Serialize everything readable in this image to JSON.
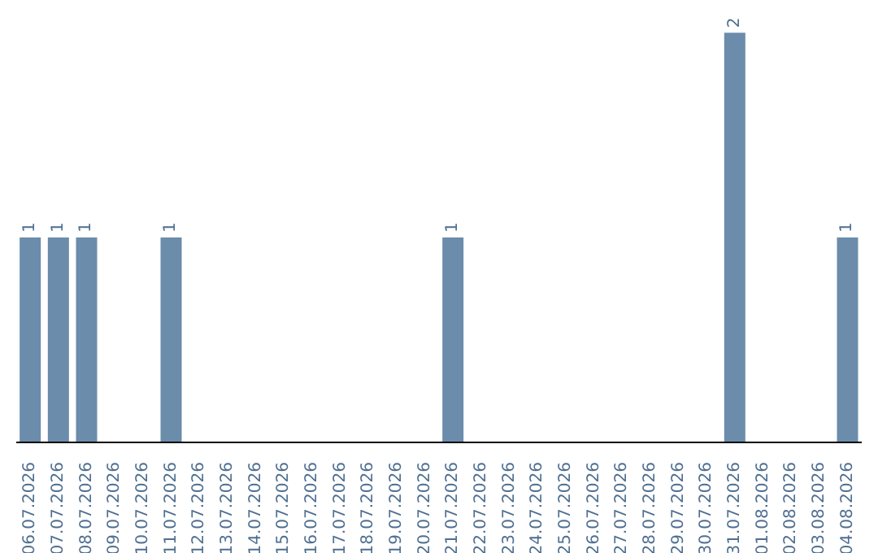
{
  "chart_data": {
    "type": "bar",
    "categories": [
      "06.07.2026",
      "07.07.2026",
      "08.07.2026",
      "09.07.2026",
      "10.07.2026",
      "11.07.2026",
      "12.07.2026",
      "13.07.2026",
      "14.07.2026",
      "15.07.2026",
      "16.07.2026",
      "17.07.2026",
      "18.07.2026",
      "19.07.2026",
      "20.07.2026",
      "21.07.2026",
      "22.07.2026",
      "23.07.2026",
      "24.07.2026",
      "25.07.2026",
      "26.07.2026",
      "27.07.2026",
      "28.07.2026",
      "29.07.2026",
      "30.07.2026",
      "31.07.2026",
      "01.08.2026",
      "02.08.2026",
      "03.08.2026",
      "04.08.2026"
    ],
    "values": [
      1,
      1,
      1,
      0,
      0,
      1,
      0,
      0,
      0,
      0,
      0,
      0,
      0,
      0,
      0,
      1,
      0,
      0,
      0,
      0,
      0,
      0,
      0,
      0,
      0,
      2,
      0,
      0,
      0,
      1
    ],
    "value_labels": [
      "1",
      "1",
      "1",
      null,
      null,
      "1",
      null,
      null,
      null,
      null,
      null,
      null,
      null,
      null,
      null,
      "1",
      null,
      null,
      null,
      null,
      null,
      null,
      null,
      null,
      null,
      "2",
      null,
      null,
      null,
      "1"
    ],
    "color": "#6b8cab",
    "tick_labels": "x"
  }
}
